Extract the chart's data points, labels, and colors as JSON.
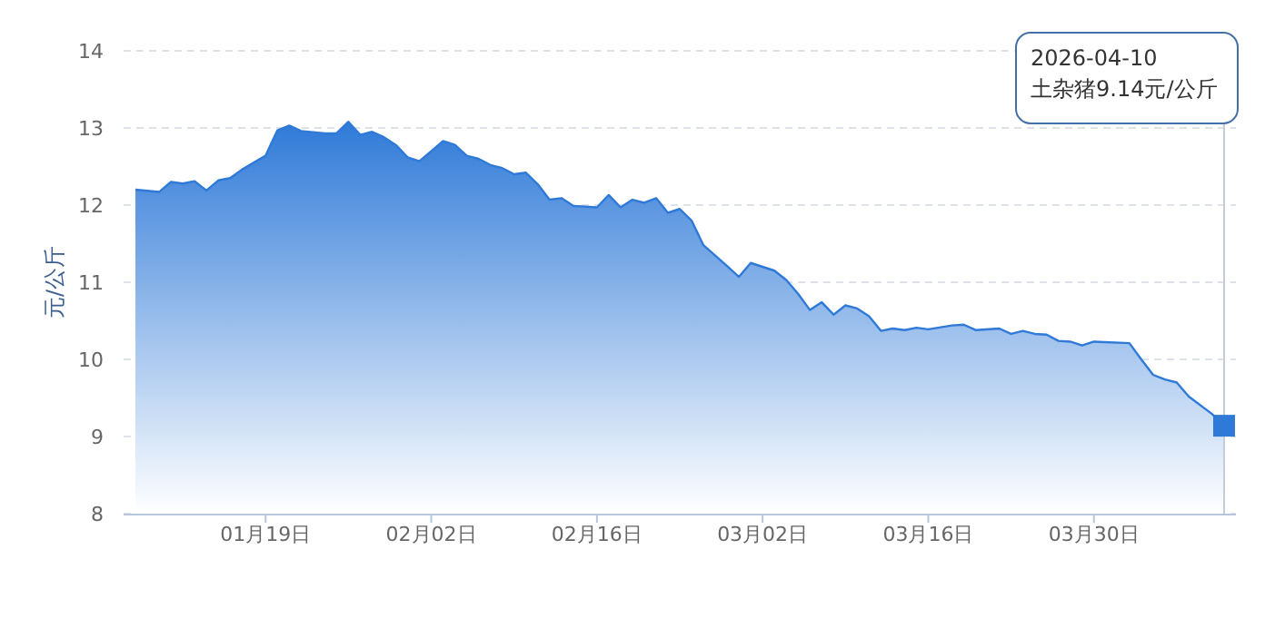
{
  "chart_data": {
    "type": "area",
    "ylabel": "元/公斤",
    "color": "#2f7ad8",
    "grid": "y",
    "ref_lines": [
      {
        "axis": "x",
        "value": "2026-04-10",
        "color": "#c4ccd8"
      }
    ],
    "series": [
      {
        "type": "scatter",
        "marker": "square",
        "color": "#2f7ad8",
        "x": [
          "2026-04-10"
        ],
        "values": [
          9.14
        ]
      }
    ],
    "xlim": [
      "2026-01-07",
      "2026-04-11"
    ],
    "ylim": [
      8,
      14
    ],
    "yticks": [
      8,
      9,
      10,
      11,
      12,
      13,
      14
    ],
    "xticks": [
      {
        "value": "2026-01-19",
        "label": "01月19日"
      },
      {
        "value": "2026-02-02",
        "label": "02月02日"
      },
      {
        "value": "2026-02-16",
        "label": "02月16日"
      },
      {
        "value": "2026-03-02",
        "label": "03月02日"
      },
      {
        "value": "2026-03-16",
        "label": "03月16日"
      },
      {
        "value": "2026-03-30",
        "label": "03月30日"
      }
    ],
    "x": [
      "2026-01-08",
      "2026-01-10",
      "2026-01-11",
      "2026-01-12",
      "2026-01-13",
      "2026-01-14",
      "2026-01-15",
      "2026-01-16",
      "2026-01-17",
      "2026-01-19",
      "2026-01-20",
      "2026-01-21",
      "2026-01-22",
      "2026-01-24",
      "2026-01-25",
      "2026-01-26",
      "2026-01-27",
      "2026-01-28",
      "2026-01-29",
      "2026-01-30",
      "2026-01-31",
      "2026-02-01",
      "2026-02-03",
      "2026-02-04",
      "2026-02-05",
      "2026-02-06",
      "2026-02-07",
      "2026-02-08",
      "2026-02-09",
      "2026-02-10",
      "2026-02-11",
      "2026-02-12",
      "2026-02-13",
      "2026-02-14",
      "2026-02-16",
      "2026-02-17",
      "2026-02-18",
      "2026-02-19",
      "2026-02-20",
      "2026-02-21",
      "2026-02-22",
      "2026-02-23",
      "2026-02-24",
      "2026-02-25",
      "2026-02-27",
      "2026-02-28",
      "2026-03-01",
      "2026-03-03",
      "2026-03-04",
      "2026-03-05",
      "2026-03-06",
      "2026-03-07",
      "2026-03-08",
      "2026-03-09",
      "2026-03-10",
      "2026-03-11",
      "2026-03-12",
      "2026-03-13",
      "2026-03-14",
      "2026-03-15",
      "2026-03-16",
      "2026-03-18",
      "2026-03-19",
      "2026-03-20",
      "2026-03-22",
      "2026-03-23",
      "2026-03-24",
      "2026-03-25",
      "2026-03-26",
      "2026-03-27",
      "2026-03-28",
      "2026-03-29",
      "2026-03-30",
      "2026-04-02",
      "2026-04-03",
      "2026-04-04",
      "2026-04-05",
      "2026-04-06",
      "2026-04-07",
      "2026-04-09",
      "2026-04-10"
    ],
    "values": [
      12.2,
      12.17,
      12.3,
      12.28,
      12.31,
      12.19,
      12.32,
      12.35,
      12.46,
      12.64,
      12.97,
      13.03,
      12.96,
      12.93,
      12.93,
      13.08,
      12.91,
      12.95,
      12.88,
      12.78,
      12.62,
      12.57,
      12.83,
      12.78,
      12.64,
      12.6,
      12.52,
      12.48,
      12.4,
      12.42,
      12.27,
      12.07,
      12.09,
      11.99,
      11.97,
      12.13,
      11.97,
      12.07,
      12.03,
      12.09,
      11.9,
      11.95,
      11.8,
      11.48,
      11.21,
      11.07,
      11.25,
      11.15,
      11.03,
      10.85,
      10.64,
      10.74,
      10.58,
      10.7,
      10.66,
      10.56,
      10.37,
      10.4,
      10.38,
      10.41,
      10.39,
      10.44,
      10.45,
      10.38,
      10.4,
      10.33,
      10.37,
      10.33,
      10.32,
      10.24,
      10.23,
      10.18,
      10.23,
      10.21,
      10.0,
      9.8,
      9.74,
      9.7,
      9.52,
      9.29,
      9.14
    ],
    "annotations": [
      "2026-04-10",
      "土杂猪9.14元/公斤"
    ]
  }
}
